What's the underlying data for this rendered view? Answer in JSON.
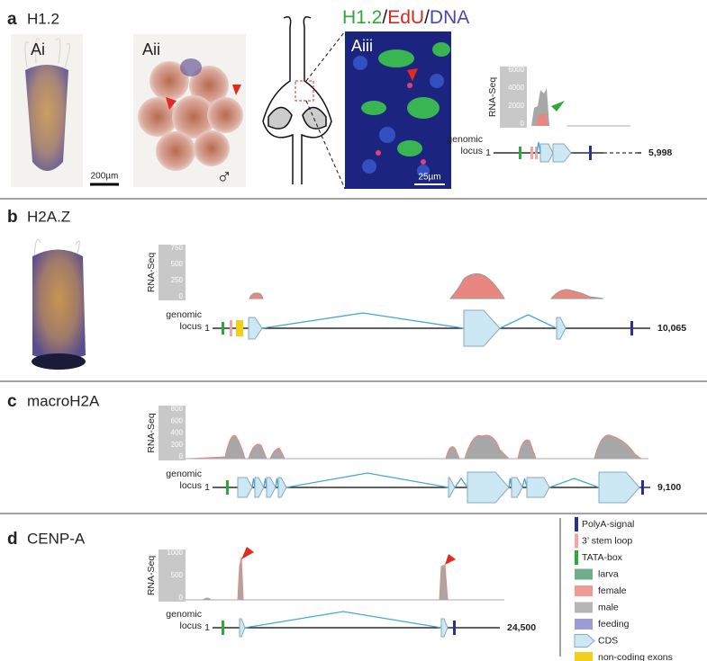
{
  "panels": [
    {
      "letter": "a",
      "title": "H1.2",
      "sublabels": [
        "Ai",
        "Aii",
        "Aiii"
      ],
      "scale_bars": [
        "200µm",
        "25µm"
      ],
      "symbol": "♂",
      "stain": [
        "H1.2",
        "/",
        "EdU",
        "/",
        "DNA"
      ],
      "track": {
        "label": "RNA-Seq",
        "ticks": [
          "6000",
          "4000",
          "2000",
          "0"
        ],
        "locus_label": [
          "genomic",
          "locus"
        ],
        "start": "1",
        "end": "5,998"
      }
    },
    {
      "letter": "b",
      "title": "H2A.Z",
      "track": {
        "label": "RNA-Seq",
        "ticks": [
          "750",
          "500",
          "250",
          "0"
        ],
        "locus_label": [
          "genomic",
          "locus"
        ],
        "start": "1",
        "end": "10,065"
      }
    },
    {
      "letter": "c",
      "title": "macroH2A",
      "track": {
        "label": "RNA-Seq",
        "ticks": [
          "800",
          "600",
          "400",
          "200",
          "0"
        ],
        "locus_label": [
          "genomic",
          "locus"
        ],
        "start": "1",
        "end": "9,100"
      }
    },
    {
      "letter": "d",
      "title": "CENP-A",
      "track": {
        "label": "RNA-Seq",
        "ticks": [
          "1000",
          "500",
          "0"
        ],
        "locus_label": [
          "genomic",
          "locus"
        ],
        "start": "1",
        "end": "24,500"
      }
    }
  ],
  "legend": [
    "PolyA-signal",
    "3’ stem loop",
    "TATA-box",
    "larva",
    "female",
    "male",
    "feeding",
    "CDS",
    "non-coding exons"
  ]
}
